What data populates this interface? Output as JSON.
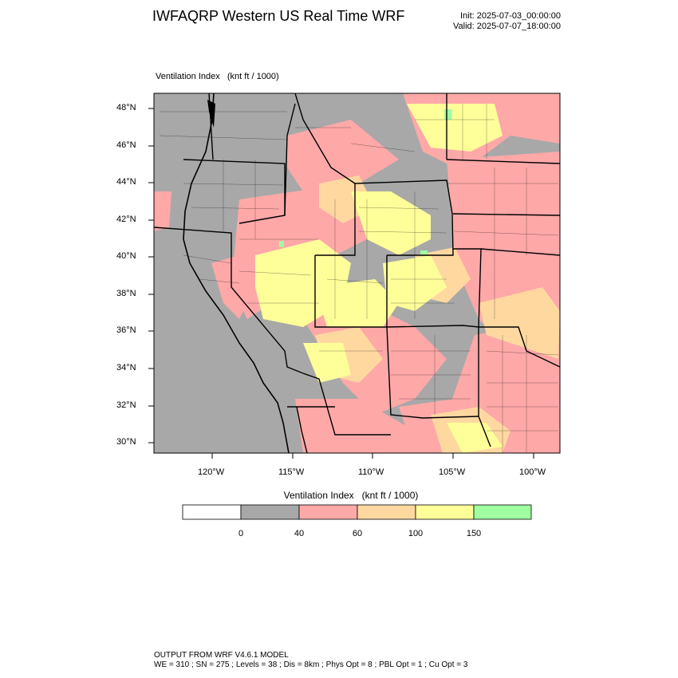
{
  "header": {
    "title": "IWFAQRP Western US Real Time WRF",
    "init": "Init: 2025-07-03_00:00:00",
    "valid": "Valid: 2025-07-07_18:00:00"
  },
  "map": {
    "field_label": "Ventilation Index   (knt ft / 1000)",
    "lat_labels": [
      "48°N",
      "46°N",
      "44°N",
      "42°N",
      "40°N",
      "38°N",
      "36°N",
      "34°N",
      "32°N",
      "30°N"
    ],
    "lon_labels": [
      "120°W",
      "115°W",
      "110°W",
      "105°W",
      "100°W"
    ],
    "extent": {
      "lon": [
        -123.6,
        -98.2
      ],
      "lat": [
        29.4,
        48.8
      ]
    }
  },
  "colorbar": {
    "title": "Ventilation Index   (knt ft / 1000)",
    "tick_labels": [
      "0",
      "40",
      "60",
      "100",
      "150"
    ],
    "colors": [
      "#ffffff",
      "#a8a8a8",
      "#ffa8a8",
      "#ffd8a0",
      "#ffff9a",
      "#a0ffa0"
    ]
  },
  "footer": {
    "line1": "OUTPUT FROM WRF V4.6.1 MODEL",
    "line2": "WE = 310 ; SN = 275 ; Levels = 38 ; Dis = 8km ; Phys Opt = 8 ; PBL Opt = 1 ; Cu Opt = 3"
  }
}
